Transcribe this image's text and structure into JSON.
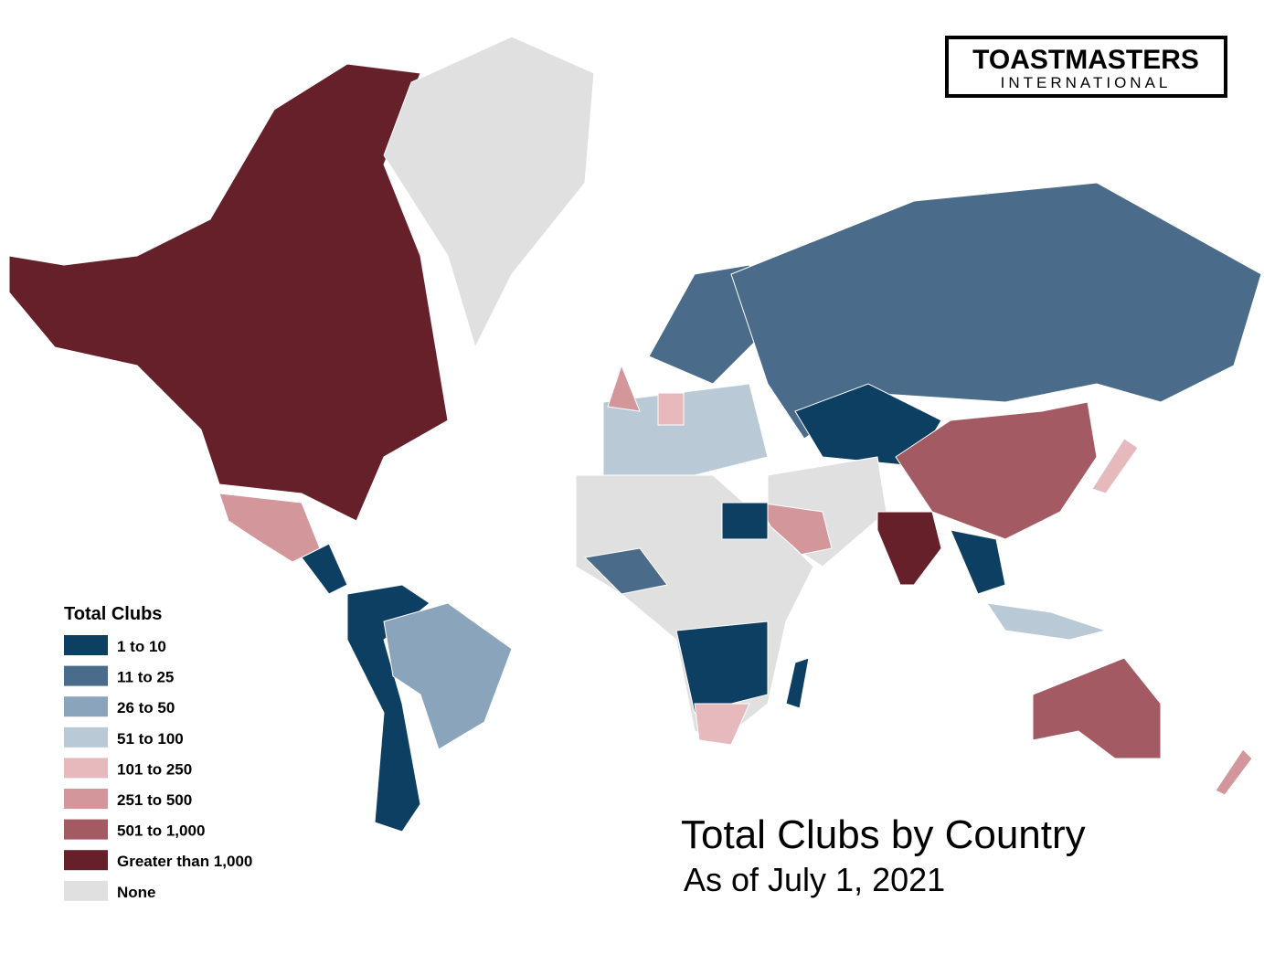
{
  "logo": {
    "name": "TOASTMASTERS",
    "sub": "INTERNATIONAL"
  },
  "legend": {
    "title": "Total Clubs",
    "items": [
      {
        "label": "1 to 10",
        "color": "#0d3f63"
      },
      {
        "label": "11 to 25",
        "color": "#4a6b8a"
      },
      {
        "label": "26 to 50",
        "color": "#8aa5bb"
      },
      {
        "label": "51 to 100",
        "color": "#b9cad6"
      },
      {
        "label": "101 to 250",
        "color": "#e6b9bc"
      },
      {
        "label": "251 to 500",
        "color": "#d3969a"
      },
      {
        "label": "501 to 1,000",
        "color": "#a45a63"
      },
      {
        "label": "Greater than 1,000",
        "color": "#652029"
      },
      {
        "label": "None",
        "color": "#e0e0e0"
      }
    ]
  },
  "title": "Total Clubs by Country",
  "subtitle": "As of July 1, 2021"
}
